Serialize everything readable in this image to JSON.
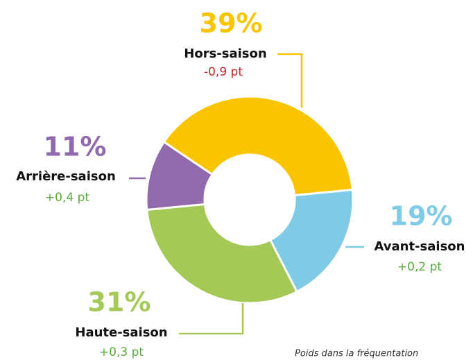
{
  "chart_data": {
    "type": "donut",
    "categories": [
      "Hors-saison",
      "Avant-saison",
      "Haute-saison",
      "Arrière-saison"
    ],
    "values": [
      39,
      19,
      31,
      11
    ],
    "value_labels": [
      "39%",
      "19%",
      "31%",
      "11%"
    ],
    "colors": [
      "#f8c500",
      "#7fcbe6",
      "#a4c957",
      "#9169ad"
    ],
    "changes": [
      "-0,9 pt",
      "+0,2 pt",
      "+0,3 pt",
      "+0,4 pt"
    ],
    "change_colors": [
      "#c1272d",
      "#5aab3f",
      "#5aab3f",
      "#5aab3f"
    ],
    "note": "Poids dans la fréquentation"
  }
}
